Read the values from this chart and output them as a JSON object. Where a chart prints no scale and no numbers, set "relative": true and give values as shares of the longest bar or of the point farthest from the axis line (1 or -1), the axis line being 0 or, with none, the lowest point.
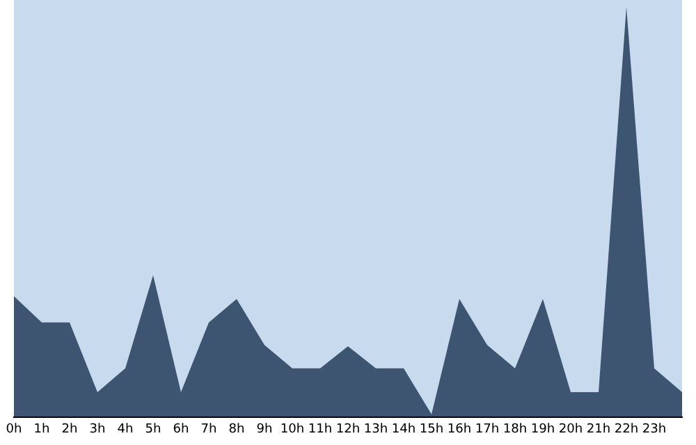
{
  "chart_data": {
    "type": "area",
    "relative": true,
    "color": "#3d5570",
    "categories": [
      "0h",
      "1h",
      "2h",
      "3h",
      "4h",
      "5h",
      "6h",
      "7h",
      "8h",
      "9h",
      "10h",
      "11h",
      "12h",
      "13h",
      "14h",
      "15h",
      "16h",
      "17h",
      "18h",
      "19h",
      "20h",
      "21h",
      "22h",
      "23h",
      null
    ],
    "values": [
      0.295,
      0.231,
      0.231,
      0.061,
      0.119,
      0.346,
      0.061,
      0.231,
      0.288,
      0.176,
      0.119,
      0.119,
      0.173,
      0.119,
      0.119,
      0.007,
      0.288,
      0.176,
      0.119,
      0.288,
      0.061,
      0.061,
      1,
      0.119,
      0.061
    ],
    "grid": false,
    "legend": false
  }
}
